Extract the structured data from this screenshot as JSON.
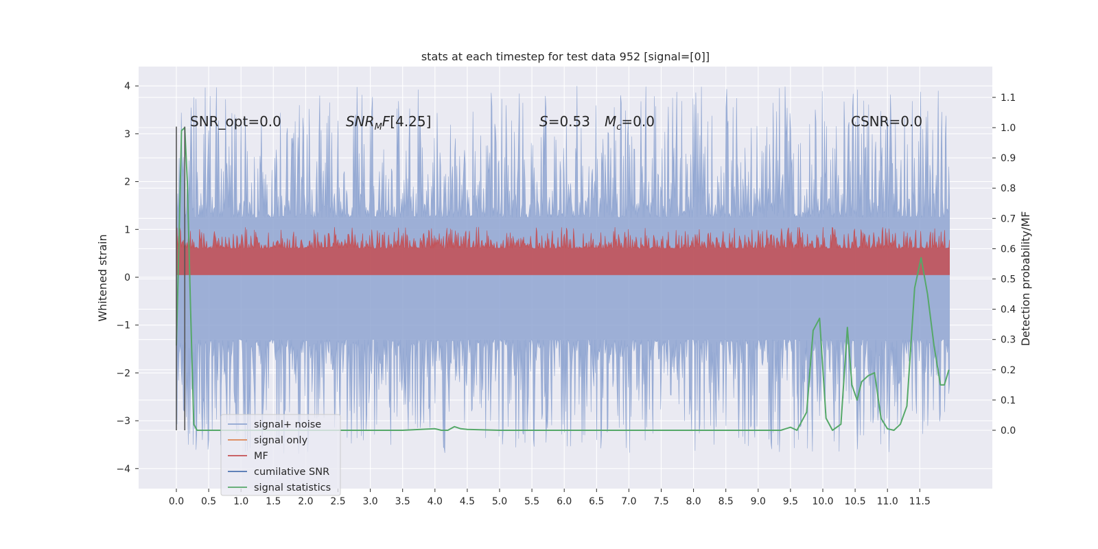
{
  "chart_data": {
    "type": "line",
    "title": "stats at each timestep for test data 952 [signal=[0]]",
    "ylabel": "Whitened strain",
    "y2label": "Detection probability/MF",
    "xlabel": "",
    "xlim": [
      -0.27,
      12.91
    ],
    "ylim": [
      -4.4,
      4.4
    ],
    "y2lim": [
      -0.2,
      1.19
    ],
    "grid": true,
    "legend_position": "lower-left",
    "x_ticks": [
      "0.0",
      "0.5",
      "1.0",
      "1.5",
      "2.0",
      "2.5",
      "3.0",
      "3.5",
      "4.0",
      "4.5",
      "5.0",
      "5.5",
      "6.0",
      "6.5",
      "7.0",
      "7.5",
      "8.0",
      "8.5",
      "9.0",
      "9.5",
      "10.0",
      "10.5",
      "11.0",
      "11.5"
    ],
    "y_ticks": [
      "4",
      "3",
      "2",
      "1",
      "0",
      "−1",
      "−2",
      "−3",
      "−4"
    ],
    "y2_ticks": [
      "1.1",
      "1.0",
      "0.9",
      "0.8",
      "0.7",
      "0.6",
      "0.5",
      "0.4",
      "0.3",
      "0.2",
      "0.1",
      "0.0"
    ],
    "annotations": {
      "snr_opt": "SNR_opt=0.0",
      "snr_mf": "[4.25]",
      "s": "=0.53",
      "mc": "=0.0",
      "csnr": "CSNR=0.0"
    },
    "legend": [
      {
        "label": "signal+ noise",
        "color": "#8fa5d1"
      },
      {
        "label": "signal only",
        "color": "#dd8452"
      },
      {
        "label": "MF",
        "color": "#c44e52"
      },
      {
        "label": "cumilative SNR",
        "color": "#4c72b0"
      },
      {
        "label": "signal statistics",
        "color": "#55a868"
      }
    ],
    "series": [
      {
        "name": "signal+ noise",
        "kind": "noise-band",
        "color": "#8fa5d1",
        "x_range": [
          0.0,
          11.96
        ],
        "core_range": [
          -1.3,
          1.25
        ],
        "peak_range": [
          -3.7,
          4.0
        ]
      },
      {
        "name": "MF",
        "kind": "noise-band",
        "color": "#c44e52",
        "x_range": [
          0.0,
          11.96
        ],
        "core_range": [
          0.05,
          0.6
        ],
        "peak_range": [
          0.05,
          1.05
        ]
      },
      {
        "name": "signal statistics",
        "axis": "right",
        "color": "#55a868",
        "x": [
          0.0,
          0.04,
          0.08,
          0.13,
          0.17,
          0.22,
          0.27,
          0.32,
          0.5,
          1.0,
          2.0,
          3.0,
          3.5,
          4.0,
          4.1,
          4.2,
          4.3,
          4.4,
          4.5,
          5.0,
          5.5,
          6.0,
          6.5,
          7.0,
          7.5,
          8.0,
          8.5,
          9.0,
          9.35,
          9.5,
          9.6,
          9.75,
          9.85,
          9.95,
          10.05,
          10.15,
          10.28,
          10.38,
          10.45,
          10.53,
          10.6,
          10.7,
          10.8,
          10.9,
          11.0,
          11.1,
          11.2,
          11.3,
          11.42,
          11.52,
          11.62,
          11.72,
          11.82,
          11.88,
          11.95
        ],
        "y": [
          0.28,
          0.62,
          0.99,
          1.0,
          0.82,
          0.4,
          0.02,
          0.0,
          0.0,
          0.0,
          0.0,
          0.0,
          0.0,
          0.005,
          0.0,
          0.0,
          0.012,
          0.005,
          0.003,
          0.0,
          0.0,
          0.0,
          0.0,
          0.0,
          0.0,
          0.0,
          0.0,
          0.0,
          0.0,
          0.01,
          0.0,
          0.06,
          0.33,
          0.37,
          0.04,
          0.0,
          0.02,
          0.34,
          0.15,
          0.1,
          0.16,
          0.18,
          0.19,
          0.04,
          0.005,
          0.0,
          0.02,
          0.08,
          0.47,
          0.57,
          0.45,
          0.28,
          0.15,
          0.15,
          0.2
        ]
      },
      {
        "name": "marker lines",
        "kind": "vlines",
        "color": "#555555",
        "x": [
          0.0,
          0.13
        ],
        "y_range": [
          -3.2,
          3.15
        ]
      }
    ]
  }
}
